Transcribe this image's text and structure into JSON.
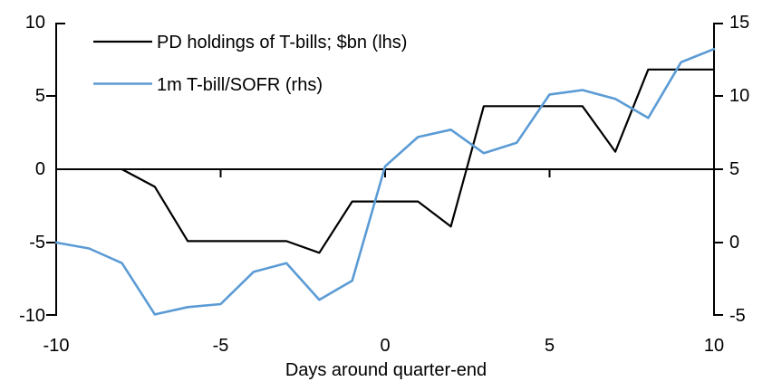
{
  "chart_data": {
    "type": "line",
    "title": "",
    "xlabel": "Days around quarter-end",
    "ylabel_left": "",
    "ylabel_right": "",
    "grid": false,
    "legend_position": "top-left",
    "x": [
      -10,
      -9,
      -8,
      -7,
      -6,
      -5,
      -4,
      -3,
      -2,
      -1,
      0,
      1,
      2,
      3,
      4,
      5,
      6,
      7,
      8,
      9,
      10
    ],
    "series": [
      {
        "name": "PD holdings of T-bills; $bn (lhs)",
        "axis": "left",
        "color": "#000000",
        "values": [
          null,
          null,
          0.0,
          -1.2,
          -4.9,
          -4.9,
          -4.9,
          -4.9,
          -5.7,
          -2.2,
          -2.2,
          -2.2,
          -3.9,
          4.3,
          4.3,
          4.3,
          4.3,
          1.2,
          6.8,
          6.8,
          6.8
        ]
      },
      {
        "name": "1m T-bill/SOFR (rhs)",
        "axis": "right",
        "color": "#5B9BD5",
        "values": [
          0.0,
          -0.4,
          -1.4,
          -4.9,
          -4.4,
          -4.2,
          -2.0,
          -1.4,
          -3.9,
          -2.6,
          5.2,
          7.2,
          7.7,
          6.1,
          6.8,
          10.1,
          10.4,
          9.8,
          8.5,
          12.3,
          13.2
        ]
      }
    ],
    "left_axis": {
      "range": [
        -10,
        10
      ],
      "ticks": [
        "10",
        "5",
        "0",
        "-5",
        "-10"
      ]
    },
    "right_axis": {
      "range": [
        -5,
        15
      ],
      "ticks": [
        "15",
        "10",
        "5",
        "0",
        "-5"
      ]
    },
    "x_axis": {
      "range": [
        -10,
        10
      ],
      "ticks": [
        "-10",
        "-5",
        "0",
        "5",
        "10"
      ]
    }
  }
}
